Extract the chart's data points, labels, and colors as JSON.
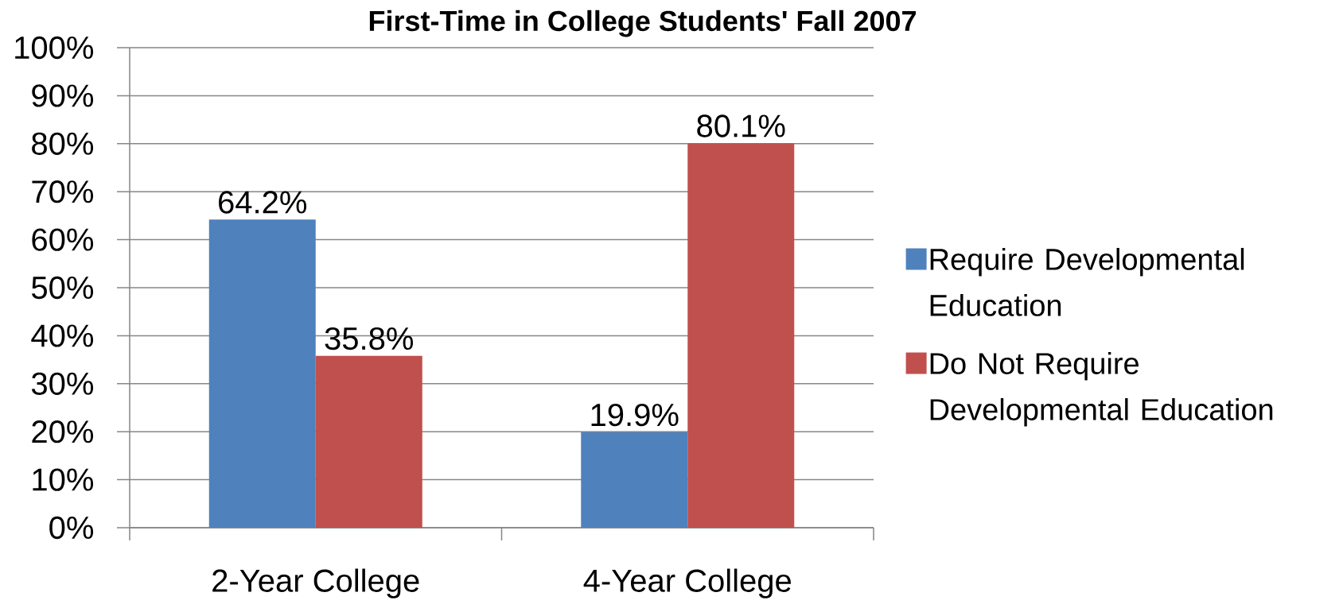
{
  "chart_data": {
    "type": "bar",
    "title": "First-Time in College Students' Fall 2007",
    "categories": [
      "2-Year College",
      "4-Year College"
    ],
    "series": [
      {
        "name": "Require Developmental Education",
        "color": "#4f81bd",
        "values": [
          64.2,
          19.9
        ],
        "value_labels": [
          "64.2%",
          "19.9%"
        ]
      },
      {
        "name": "Do Not Require Developmental Education",
        "color": "#c0504d",
        "values": [
          35.8,
          80.1
        ],
        "value_labels": [
          "35.8%",
          "80.1%"
        ]
      }
    ],
    "ylim": [
      0,
      100
    ],
    "yticks": [
      {
        "value": 0,
        "label": "0%"
      },
      {
        "value": 10,
        "label": "10%"
      },
      {
        "value": 20,
        "label": "20%"
      },
      {
        "value": 30,
        "label": "30%"
      },
      {
        "value": 40,
        "label": "40%"
      },
      {
        "value": 50,
        "label": "50%"
      },
      {
        "value": 60,
        "label": "60%"
      },
      {
        "value": 70,
        "label": "70%"
      },
      {
        "value": 80,
        "label": "80%"
      },
      {
        "value": 90,
        "label": "90%"
      },
      {
        "value": 100,
        "label": "100%"
      }
    ],
    "grid": "y",
    "legend": "right"
  }
}
